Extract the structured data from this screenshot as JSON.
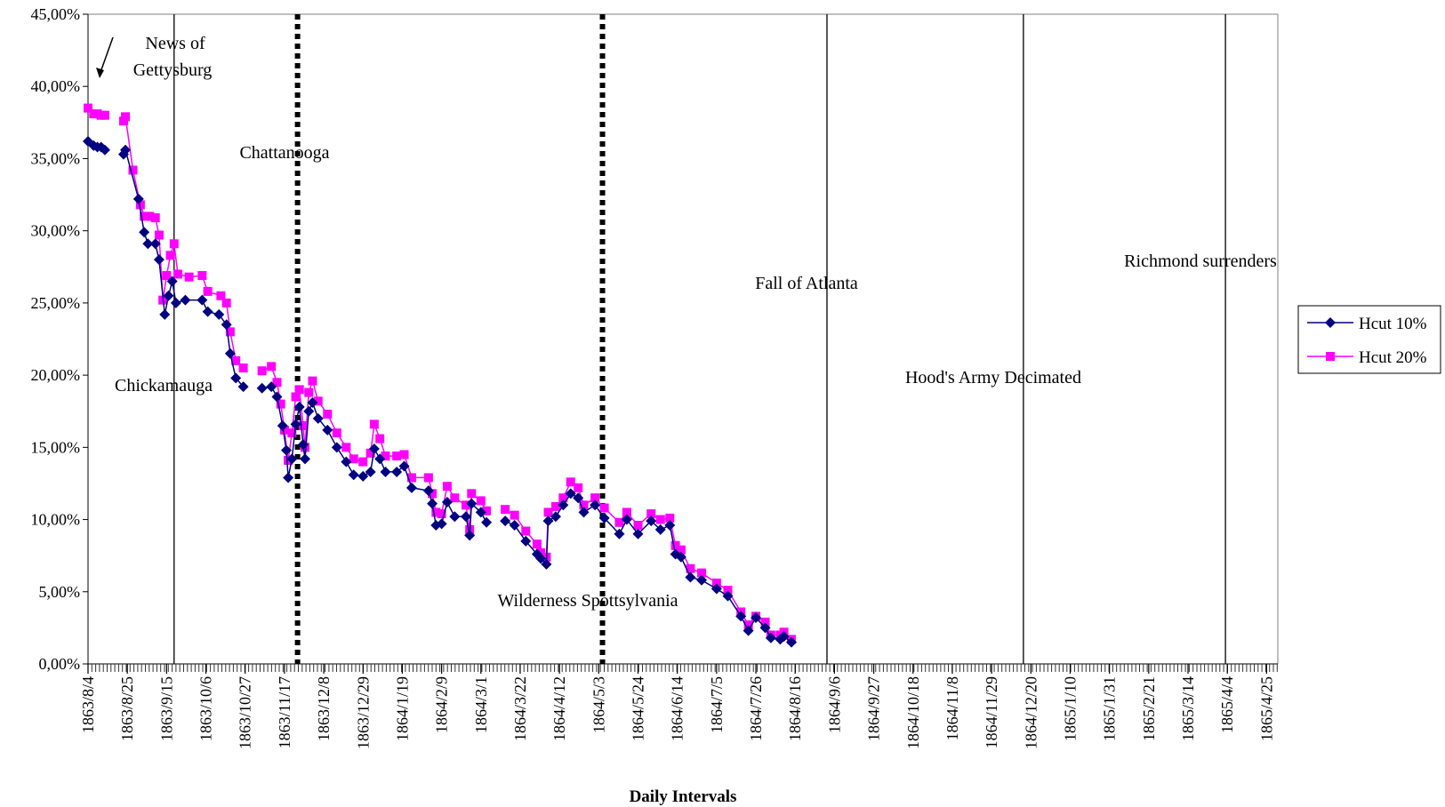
{
  "chart_data": {
    "type": "line",
    "title": "",
    "xlabel": "Daily Intervals",
    "ylabel": "",
    "ylim": [
      0,
      45
    ],
    "y_ticks": [
      "0,00%",
      "5,00%",
      "10,00%",
      "15,00%",
      "20,00%",
      "25,00%",
      "30,00%",
      "35,00%",
      "40,00%",
      "45,00%"
    ],
    "x_ticks": [
      "1863/8/4",
      "1863/8/25",
      "1863/9/15",
      "1863/10/6",
      "1863/10/27",
      "1863/11/17",
      "1863/12/8",
      "1863/12/29",
      "1864/1/19",
      "1864/2/9",
      "1864/3/1",
      "1864/3/22",
      "1864/4/12",
      "1864/5/3",
      "1864/5/24",
      "1864/6/14",
      "1864/7/5",
      "1864/7/26",
      "1864/8/16",
      "1864/9/6",
      "1864/9/27",
      "1864/10/18",
      "1864/11/8",
      "1864/11/29",
      "1864/12/20",
      "1865/1/10",
      "1865/1/31",
      "1865/2/21",
      "1865/3/14",
      "1865/4/4",
      "1865/4/25"
    ],
    "legend": {
      "placement": "right"
    },
    "grid": false,
    "series": [
      {
        "name": "Hcut 10%",
        "color": "#000080",
        "marker": "diamond",
        "points": [
          [
            "1863/8/4",
            36.2
          ],
          [
            "1863/8/7",
            35.9
          ],
          [
            "1863/8/9",
            35.8
          ],
          [
            "1863/8/11",
            35.8
          ],
          [
            "1863/8/13",
            35.6
          ],
          [
            "1863/8/23",
            35.3
          ],
          [
            "1863/8/24",
            35.6
          ],
          [
            "1863/8/31",
            32.2
          ],
          [
            "1863/9/3",
            29.9
          ],
          [
            "1863/9/5",
            29.1
          ],
          [
            "1863/9/9",
            29.1
          ],
          [
            "1863/9/11",
            28.0
          ],
          [
            "1863/9/14",
            24.2
          ],
          [
            "1863/9/16",
            25.5
          ],
          [
            "1863/9/18",
            26.5
          ],
          [
            "1863/9/20",
            25.0
          ],
          [
            "1863/9/25",
            25.2
          ],
          [
            "1863/10/4",
            25.2
          ],
          [
            "1863/10/7",
            24.4
          ],
          [
            "1863/10/13",
            24.2
          ],
          [
            "1863/10/17",
            23.5
          ],
          [
            "1863/10/19",
            21.5
          ],
          [
            "1863/10/22",
            19.8
          ],
          [
            "1863/10/26",
            19.2
          ],
          [
            "1863/11/5",
            19.1
          ],
          [
            "1863/11/10",
            19.2
          ],
          [
            "1863/11/13",
            18.5
          ],
          [
            "1863/11/16",
            16.5
          ],
          [
            "1863/11/18",
            14.8
          ],
          [
            "1863/11/19",
            12.9
          ],
          [
            "1863/11/21",
            14.2
          ],
          [
            "1863/11/23",
            16.6
          ],
          [
            "1863/11/25",
            17.8
          ],
          [
            "1863/11/27",
            15.2
          ],
          [
            "1863/11/28",
            14.2
          ],
          [
            "1863/11/30",
            17.5
          ],
          [
            "1863/12/2",
            18.1
          ],
          [
            "1863/12/5",
            17.0
          ],
          [
            "1863/12/10",
            16.2
          ],
          [
            "1863/12/15",
            15.0
          ],
          [
            "1863/12/20",
            14.0
          ],
          [
            "1863/12/24",
            13.1
          ],
          [
            "1863/12/29",
            13.0
          ],
          [
            "1864/1/2",
            13.3
          ],
          [
            "1864/1/4",
            14.9
          ],
          [
            "1864/1/7",
            14.2
          ],
          [
            "1864/1/10",
            13.3
          ],
          [
            "1864/1/16",
            13.3
          ],
          [
            "1864/1/20",
            13.7
          ],
          [
            "1864/1/24",
            12.2
          ],
          [
            "1864/2/2",
            12.0
          ],
          [
            "1864/2/4",
            11.1
          ],
          [
            "1864/2/6",
            9.6
          ],
          [
            "1864/2/9",
            9.7
          ],
          [
            "1864/2/12",
            11.2
          ],
          [
            "1864/2/16",
            10.2
          ],
          [
            "1864/2/22",
            10.2
          ],
          [
            "1864/2/24",
            8.9
          ],
          [
            "1864/2/25",
            11.1
          ],
          [
            "1864/3/1",
            10.5
          ],
          [
            "1864/3/4",
            9.8
          ],
          [
            "1864/3/14",
            9.9
          ],
          [
            "1864/3/19",
            9.6
          ],
          [
            "1864/3/25",
            8.5
          ],
          [
            "1864/3/31",
            7.6
          ],
          [
            "1864/4/2",
            7.3
          ],
          [
            "1864/4/5",
            6.9
          ],
          [
            "1864/4/6",
            9.9
          ],
          [
            "1864/4/10",
            10.2
          ],
          [
            "1864/4/14",
            11.0
          ],
          [
            "1864/4/18",
            11.8
          ],
          [
            "1864/4/22",
            11.5
          ],
          [
            "1864/4/25",
            10.5
          ],
          [
            "1864/5/1",
            11.0
          ],
          [
            "1864/5/6",
            10.1
          ],
          [
            "1864/5/14",
            9.0
          ],
          [
            "1864/5/18",
            10.0
          ],
          [
            "1864/5/24",
            9.0
          ],
          [
            "1864/5/31",
            9.9
          ],
          [
            "1864/6/5",
            9.3
          ],
          [
            "1864/6/10",
            9.6
          ],
          [
            "1864/6/13",
            7.6
          ],
          [
            "1864/6/16",
            7.4
          ],
          [
            "1864/6/21",
            6.0
          ],
          [
            "1864/6/27",
            5.8
          ],
          [
            "1864/7/5",
            5.2
          ],
          [
            "1864/7/11",
            4.7
          ],
          [
            "1864/7/18",
            3.3
          ],
          [
            "1864/7/22",
            2.3
          ],
          [
            "1864/7/26",
            3.2
          ],
          [
            "1864/7/31",
            2.5
          ],
          [
            "1864/8/3",
            1.8
          ],
          [
            "1864/8/8",
            1.7
          ],
          [
            "1864/8/10",
            1.9
          ],
          [
            "1864/8/14",
            1.5
          ]
        ]
      },
      {
        "name": "Hcut 20%",
        "color": "#ff00ff",
        "marker": "square",
        "points": [
          [
            "1863/8/4",
            38.5
          ],
          [
            "1863/8/7",
            38.1
          ],
          [
            "1863/8/9",
            38.1
          ],
          [
            "1863/8/11",
            38.0
          ],
          [
            "1863/8/13",
            38.0
          ],
          [
            "1863/8/23",
            37.6
          ],
          [
            "1863/8/24",
            37.9
          ],
          [
            "1863/8/28",
            34.2
          ],
          [
            "1863/9/1",
            31.8
          ],
          [
            "1863/9/3",
            31.0
          ],
          [
            "1863/9/6",
            31.0
          ],
          [
            "1863/9/9",
            30.9
          ],
          [
            "1863/9/11",
            29.7
          ],
          [
            "1863/9/13",
            25.2
          ],
          [
            "1863/9/15",
            26.9
          ],
          [
            "1863/9/17",
            28.3
          ],
          [
            "1863/9/19",
            29.1
          ],
          [
            "1863/9/21",
            27.0
          ],
          [
            "1863/9/27",
            26.8
          ],
          [
            "1863/10/4",
            26.9
          ],
          [
            "1863/10/7",
            25.8
          ],
          [
            "1863/10/14",
            25.5
          ],
          [
            "1863/10/17",
            25.0
          ],
          [
            "1863/10/19",
            23.0
          ],
          [
            "1863/10/22",
            21.0
          ],
          [
            "1863/10/26",
            20.5
          ],
          [
            "1863/11/5",
            20.3
          ],
          [
            "1863/11/10",
            20.6
          ],
          [
            "1863/11/13",
            19.5
          ],
          [
            "1863/11/15",
            18.0
          ],
          [
            "1863/11/17",
            16.2
          ],
          [
            "1863/11/19",
            14.1
          ],
          [
            "1863/11/21",
            16.0
          ],
          [
            "1863/11/23",
            18.5
          ],
          [
            "1863/11/25",
            19.0
          ],
          [
            "1863/11/27",
            16.5
          ],
          [
            "1863/11/28",
            15.0
          ],
          [
            "1863/11/30",
            18.8
          ],
          [
            "1863/12/2",
            19.6
          ],
          [
            "1863/12/5",
            18.2
          ],
          [
            "1863/12/10",
            17.3
          ],
          [
            "1863/12/15",
            16.0
          ],
          [
            "1863/12/20",
            15.0
          ],
          [
            "1863/12/24",
            14.2
          ],
          [
            "1863/12/29",
            14.0
          ],
          [
            "1864/1/2",
            14.6
          ],
          [
            "1864/1/4",
            16.6
          ],
          [
            "1864/1/7",
            15.6
          ],
          [
            "1864/1/10",
            14.4
          ],
          [
            "1864/1/16",
            14.4
          ],
          [
            "1864/1/20",
            14.5
          ],
          [
            "1864/1/24",
            12.9
          ],
          [
            "1864/2/2",
            12.9
          ],
          [
            "1864/2/4",
            11.8
          ],
          [
            "1864/2/6",
            10.5
          ],
          [
            "1864/2/9",
            10.4
          ],
          [
            "1864/2/12",
            12.3
          ],
          [
            "1864/2/16",
            11.5
          ],
          [
            "1864/2/22",
            11.0
          ],
          [
            "1864/2/24",
            9.3
          ],
          [
            "1864/2/25",
            11.8
          ],
          [
            "1864/3/1",
            11.3
          ],
          [
            "1864/3/4",
            10.6
          ],
          [
            "1864/3/14",
            10.7
          ],
          [
            "1864/3/19",
            10.3
          ],
          [
            "1864/3/25",
            9.2
          ],
          [
            "1864/3/31",
            8.3
          ],
          [
            "1864/4/2",
            7.7
          ],
          [
            "1864/4/5",
            7.4
          ],
          [
            "1864/4/6",
            10.5
          ],
          [
            "1864/4/10",
            10.9
          ],
          [
            "1864/4/14",
            11.5
          ],
          [
            "1864/4/18",
            12.6
          ],
          [
            "1864/4/22",
            12.2
          ],
          [
            "1864/4/25",
            11.0
          ],
          [
            "1864/5/1",
            11.5
          ],
          [
            "1864/5/6",
            10.8
          ],
          [
            "1864/5/14",
            9.8
          ],
          [
            "1864/5/18",
            10.5
          ],
          [
            "1864/5/24",
            9.6
          ],
          [
            "1864/5/31",
            10.4
          ],
          [
            "1864/6/5",
            10.0
          ],
          [
            "1864/6/10",
            10.1
          ],
          [
            "1864/6/13",
            8.2
          ],
          [
            "1864/6/16",
            7.9
          ],
          [
            "1864/6/21",
            6.6
          ],
          [
            "1864/6/27",
            6.3
          ],
          [
            "1864/7/5",
            5.6
          ],
          [
            "1864/7/11",
            5.1
          ],
          [
            "1864/7/18",
            3.6
          ],
          [
            "1864/7/22",
            2.7
          ],
          [
            "1864/7/26",
            3.3
          ],
          [
            "1864/7/31",
            2.9
          ],
          [
            "1864/8/3",
            2.0
          ],
          [
            "1864/8/8",
            2.0
          ],
          [
            "1864/8/10",
            2.2
          ],
          [
            "1864/8/14",
            1.7
          ]
        ]
      }
    ],
    "event_lines": [
      {
        "date": "1863/9/19",
        "style": "solid"
      },
      {
        "date": "1863/11/24",
        "style": "dotted"
      },
      {
        "date": "1864/5/5",
        "style": "dotted"
      },
      {
        "date": "1864/9/2",
        "style": "solid"
      },
      {
        "date": "1864/12/16",
        "style": "solid"
      },
      {
        "date": "1865/4/3",
        "style": "solid"
      }
    ],
    "annotations": [
      {
        "text": "News of",
        "near": "1863/9/15"
      },
      {
        "text": "Gettysburg",
        "near": "1863/9/15"
      },
      {
        "text": "Chattanooga",
        "near": "1863/11/24"
      },
      {
        "text": "Chickamauga",
        "near": "1863/9/19"
      },
      {
        "text": "Wilderness Spottsylvania",
        "near": "1864/5/5"
      },
      {
        "text": "Fall of Atlanta",
        "near": "1864/9/2"
      },
      {
        "text": "Hood's Army Decimated",
        "near": "1864/12/16"
      },
      {
        "text": "Richmond surrenders",
        "near": "1865/4/3"
      }
    ]
  }
}
